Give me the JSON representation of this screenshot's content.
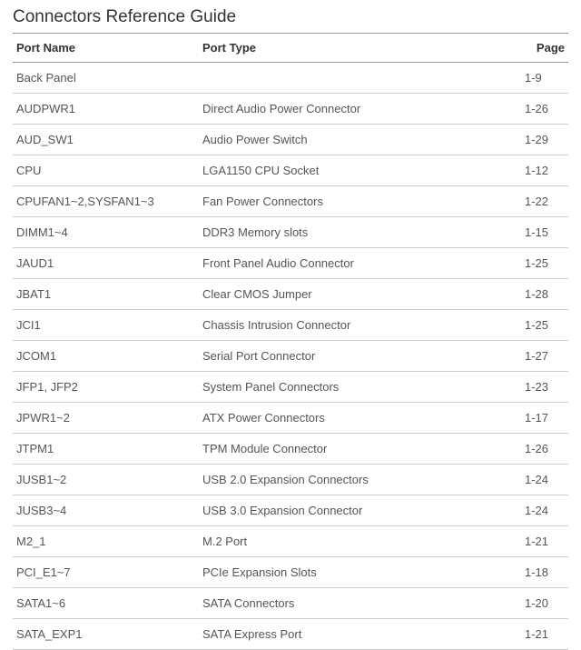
{
  "title": "Connectors Reference Guide",
  "table": {
    "columns": [
      "Port Name",
      "Port Type",
      "Page"
    ],
    "rows": [
      {
        "name": "Back Panel",
        "type": "",
        "page": "1-9"
      },
      {
        "name": "AUDPWR1",
        "type": "Direct Audio Power Connector",
        "page": "1-26"
      },
      {
        "name": "AUD_SW1",
        "type": "Audio Power Switch",
        "page": "1-29"
      },
      {
        "name": "CPU",
        "type": "LGA1150 CPU Socket",
        "page": "1-12"
      },
      {
        "name": "CPUFAN1~2,SYSFAN1~3",
        "type": "Fan Power Connectors",
        "page": "1-22"
      },
      {
        "name": "DIMM1~4",
        "type": "DDR3 Memory slots",
        "page": "1-15"
      },
      {
        "name": "JAUD1",
        "type": "Front Panel Audio Connector",
        "page": "1-25"
      },
      {
        "name": "JBAT1",
        "type": "Clear CMOS Jumper",
        "page": "1-28"
      },
      {
        "name": "JCI1",
        "type": "Chassis Intrusion Connector",
        "page": "1-25"
      },
      {
        "name": "JCOM1",
        "type": "Serial Port Connector",
        "page": "1-27"
      },
      {
        "name": "JFP1, JFP2",
        "type": "System Panel Connectors",
        "page": "1-23"
      },
      {
        "name": "JPWR1~2",
        "type": "ATX Power Connectors",
        "page": "1-17"
      },
      {
        "name": "JTPM1",
        "type": "TPM Module Connector",
        "page": "1-26"
      },
      {
        "name": "JUSB1~2",
        "type": "USB 2.0 Expansion Connectors",
        "page": "1-24"
      },
      {
        "name": "JUSB3~4",
        "type": "USB 3.0 Expansion Connector",
        "page": "1-24"
      },
      {
        "name": "M2_1",
        "type": "M.2 Port",
        "page": "1-21"
      },
      {
        "name": "PCI_E1~7",
        "type": "PCIe Expansion Slots",
        "page": "1-18"
      },
      {
        "name": "SATA1~6",
        "type": "SATA Connectors",
        "page": "1-20"
      },
      {
        "name": "SATA_EXP1",
        "type": "SATA Express Port",
        "page": "1-21"
      }
    ]
  },
  "style": {
    "title_fontsize": 19,
    "body_fontsize": 13,
    "title_color": "#333333",
    "text_color": "#555555",
    "header_border_color": "#999999",
    "row_border_color": "#cccccc",
    "background_color": "#ffffff"
  }
}
